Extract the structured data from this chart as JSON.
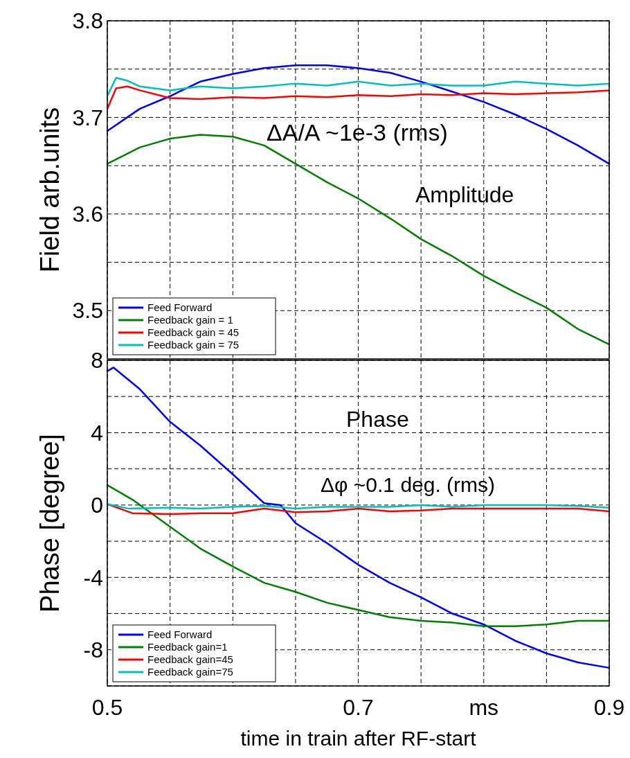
{
  "chart_data": [
    {
      "type": "line",
      "ylabel": "Field arb.units",
      "xlim": [
        0.5,
        0.9
      ],
      "xticks": [
        {
          "value": 0.5,
          "label": null
        },
        {
          "value": 0.55,
          "label": null
        },
        {
          "value": 0.6,
          "label": null
        },
        {
          "value": 0.65,
          "label": null
        },
        {
          "value": 0.7,
          "label": null
        },
        {
          "value": 0.75,
          "label": null
        },
        {
          "value": 0.8,
          "label": null
        },
        {
          "value": 0.85,
          "label": null
        },
        {
          "value": 0.9,
          "label": null
        }
      ],
      "ylim": [
        3.45,
        3.8
      ],
      "yticks": [
        {
          "value": 3.5,
          "label": "3.5"
        },
        {
          "value": 3.55,
          "label": null
        },
        {
          "value": 3.6,
          "label": "3.6"
        },
        {
          "value": 3.65,
          "label": null
        },
        {
          "value": 3.7,
          "label": "3.7"
        },
        {
          "value": 3.75,
          "label": null
        },
        {
          "value": 3.8,
          "label": "3.8"
        }
      ],
      "tick_labels": "y",
      "grid": true,
      "legend": "bottom left",
      "line_style": "solid",
      "annotations": [
        "ΔA/A ~1e-3 (rms)",
        "Amplitude"
      ],
      "series": [
        {
          "name": "Feed Forward",
          "color": "#0000ff",
          "x": [
            0.5,
            0.526,
            0.55,
            0.574,
            0.6,
            0.625,
            0.65,
            0.675,
            0.7,
            0.726,
            0.75,
            0.774,
            0.8,
            0.825,
            0.85,
            0.875,
            0.9
          ],
          "values": [
            3.686,
            3.709,
            3.722,
            3.737,
            3.745,
            3.751,
            3.754,
            3.754,
            3.751,
            3.746,
            3.737,
            3.727,
            3.716,
            3.703,
            3.688,
            3.671,
            3.652
          ]
        },
        {
          "name": "Feedback gain = 1",
          "color": "#008000",
          "x": [
            0.5,
            0.526,
            0.55,
            0.574,
            0.6,
            0.625,
            0.65,
            0.675,
            0.7,
            0.726,
            0.75,
            0.774,
            0.8,
            0.825,
            0.85,
            0.875,
            0.9
          ],
          "values": [
            3.652,
            3.669,
            3.678,
            3.682,
            3.68,
            3.671,
            3.652,
            3.633,
            3.616,
            3.595,
            3.574,
            3.557,
            3.536,
            3.519,
            3.503,
            3.481,
            3.465
          ]
        },
        {
          "name": "Feedback gain = 45",
          "color": "#ff0000",
          "x": [
            0.5,
            0.507,
            0.516,
            0.526,
            0.55,
            0.574,
            0.6,
            0.625,
            0.65,
            0.675,
            0.7,
            0.726,
            0.75,
            0.774,
            0.8,
            0.825,
            0.85,
            0.875,
            0.9
          ],
          "values": [
            3.709,
            3.73,
            3.732,
            3.728,
            3.72,
            3.719,
            3.721,
            3.72,
            3.722,
            3.721,
            3.723,
            3.722,
            3.724,
            3.723,
            3.725,
            3.724,
            3.725,
            3.726,
            3.728
          ]
        },
        {
          "name": "Feedback gain = 75",
          "color": "#00bfbf",
          "x": [
            0.5,
            0.507,
            0.516,
            0.526,
            0.55,
            0.574,
            0.6,
            0.625,
            0.65,
            0.675,
            0.7,
            0.726,
            0.75,
            0.774,
            0.8,
            0.825,
            0.85,
            0.875,
            0.9
          ],
          "values": [
            3.722,
            3.741,
            3.738,
            3.732,
            3.728,
            3.732,
            3.73,
            3.732,
            3.735,
            3.733,
            3.737,
            3.733,
            3.735,
            3.733,
            3.733,
            3.737,
            3.735,
            3.733,
            3.735
          ]
        }
      ]
    },
    {
      "type": "line",
      "xlabel": "time in train after RF-start",
      "ylabel": "Phase [degree]",
      "xlim": [
        0.5,
        0.9
      ],
      "xticks": [
        0.5,
        {
          "value": 0.55,
          "label": null
        },
        {
          "value": 0.6,
          "label": null
        },
        {
          "value": 0.65,
          "label": null
        },
        0.7,
        {
          "value": 0.75,
          "label": null
        },
        {
          "value": 0.8,
          "label": "ms"
        },
        {
          "value": 0.85,
          "label": null
        },
        0.9
      ],
      "ylim": [
        -10,
        8
      ],
      "yticks": [
        {
          "value": -10,
          "label": null
        },
        -8,
        {
          "value": -6,
          "label": null
        },
        -4,
        {
          "value": -2,
          "label": null
        },
        0,
        {
          "value": 2,
          "label": null
        },
        4,
        {
          "value": 6,
          "label": null
        },
        8
      ],
      "grid": true,
      "legend": "bottom left",
      "line_style": "solid",
      "annotations": [
        "Phase",
        "Δφ ~0.1 deg. (rms)"
      ],
      "series": [
        {
          "name": "Feed Forward",
          "color": "#0000ff",
          "x": [
            0.5,
            0.505,
            0.526,
            0.55,
            0.574,
            0.6,
            0.625,
            0.638,
            0.65,
            0.675,
            0.7,
            0.725,
            0.75,
            0.775,
            0.8,
            0.825,
            0.85,
            0.875,
            0.9
          ],
          "values": [
            7.4,
            7.6,
            6.4,
            4.6,
            3.3,
            1.7,
            0.1,
            0,
            -1,
            -2.1,
            -3.3,
            -4.3,
            -5.1,
            -6,
            -6.6,
            -7.5,
            -8.2,
            -8.7,
            -9
          ]
        },
        {
          "name": "Feedback gain=1",
          "color": "#008000",
          "x": [
            0.5,
            0.52,
            0.55,
            0.574,
            0.6,
            0.625,
            0.65,
            0.675,
            0.7,
            0.725,
            0.75,
            0.775,
            0.8,
            0.825,
            0.85,
            0.875,
            0.9
          ],
          "values": [
            1.1,
            0.3,
            -1.2,
            -2.4,
            -3.4,
            -4.3,
            -4.8,
            -5.4,
            -5.8,
            -6.2,
            -6.4,
            -6.5,
            -6.7,
            -6.7,
            -6.6,
            -6.4,
            -6.4
          ]
        },
        {
          "name": "Feedback gain=45",
          "color": "#ff0000",
          "x": [
            0.5,
            0.52,
            0.55,
            0.574,
            0.6,
            0.625,
            0.65,
            0.675,
            0.7,
            0.725,
            0.75,
            0.775,
            0.8,
            0.825,
            0.85,
            0.875,
            0.9
          ],
          "values": [
            0.05,
            -0.45,
            -0.5,
            -0.45,
            -0.45,
            -0.2,
            -0.4,
            -0.35,
            -0.2,
            -0.35,
            -0.3,
            -0.2,
            -0.2,
            -0.2,
            -0.2,
            -0.2,
            -0.35
          ]
        },
        {
          "name": "Feedback gain=75",
          "color": "#00bfbf",
          "x": [
            0.5,
            0.517,
            0.55,
            0.574,
            0.6,
            0.625,
            0.65,
            0.675,
            0.7,
            0.725,
            0.75,
            0.775,
            0.8,
            0.825,
            0.85,
            0.875,
            0.9
          ],
          "values": [
            0.05,
            -0.2,
            -0.15,
            -0.2,
            -0.1,
            -0.05,
            -0.2,
            -0.1,
            -0.1,
            -0.1,
            0,
            -0.1,
            0,
            0,
            0,
            -0.05,
            -0.15
          ]
        }
      ]
    }
  ]
}
